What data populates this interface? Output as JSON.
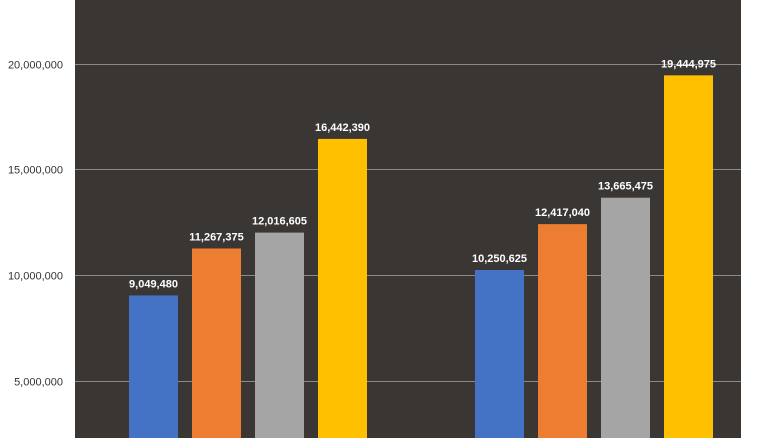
{
  "chart_data": {
    "type": "bar",
    "title": "",
    "xlabel": "",
    "ylabel": "",
    "ylim": [
      0,
      24000000
    ],
    "y_ticks": [
      5000000,
      10000000,
      15000000,
      20000000
    ],
    "y_tick_labels": [
      "5,000,000",
      "10,000,000",
      "15,000,000",
      "20,000,000"
    ],
    "grid": true,
    "legend": "none",
    "groups": [
      {
        "bars": [
          {
            "value": 9049480,
            "label": "9,049,480",
            "color": "#4472C4"
          },
          {
            "value": 11267375,
            "label": "11,267,375",
            "color": "#ED7D31"
          },
          {
            "value": 12016605,
            "label": "12,016,605",
            "color": "#A5A5A5"
          },
          {
            "value": 16442390,
            "label": "16,442,390",
            "color": "#FFC000"
          }
        ]
      },
      {
        "bars": [
          {
            "value": 10250625,
            "label": "10,250,625",
            "color": "#4472C4"
          },
          {
            "value": 12417040,
            "label": "12,417,040",
            "color": "#ED7D31"
          },
          {
            "value": 13665475,
            "label": "13,665,475",
            "color": "#A5A5A5"
          },
          {
            "value": 19444975,
            "label": "19,444,975",
            "color": "#FFC000"
          }
        ]
      }
    ],
    "plot_background": "#3A3634",
    "gridline_color": "#8C8A88"
  }
}
